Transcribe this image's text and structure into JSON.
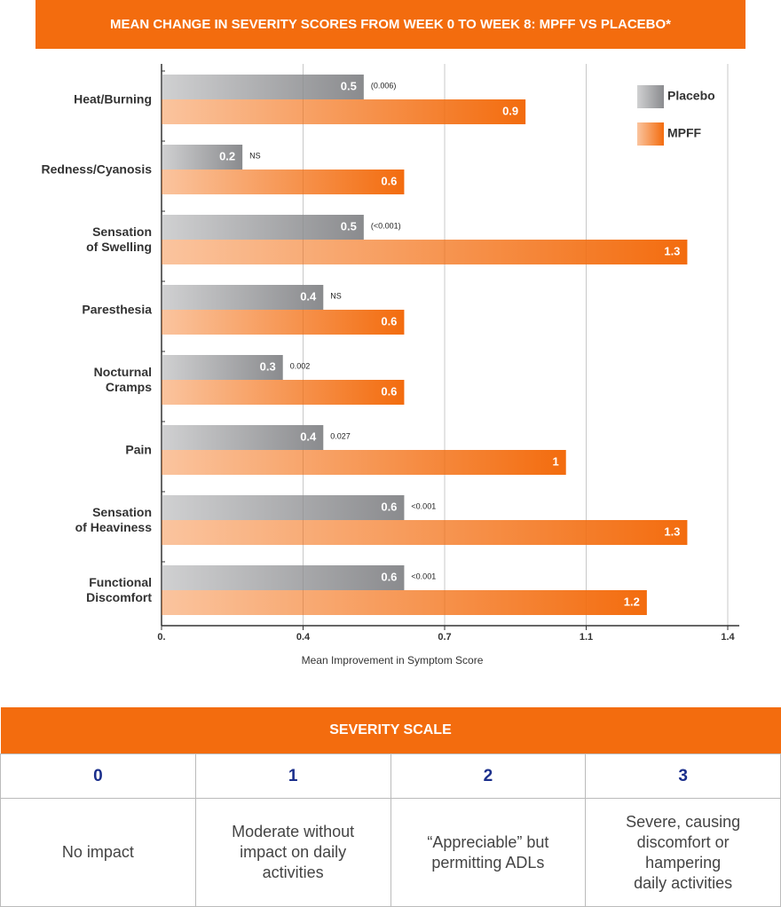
{
  "chart_data": {
    "type": "bar",
    "orientation": "horizontal",
    "title": "MEAN CHANGE IN SEVERITY SCORES FROM WEEK 0 TO WEEK 8: MPFF VS PLACEBO*",
    "xlabel": "Mean Improvement in Symptom Score",
    "categories": [
      "Heat/Burning",
      "Redness/Cyanosis",
      "Sensation\nof Swelling",
      "Paresthesia",
      "Nocturnal\nCramps",
      "Pain",
      "Sensation\nof Heaviness",
      "Functional\nDiscomfort"
    ],
    "series": [
      {
        "name": "Placebo",
        "color": "#8a8b8e",
        "values": [
          0.5,
          0.2,
          0.5,
          0.4,
          0.3,
          0.4,
          0.6,
          0.6
        ],
        "annotations": [
          "(0.006)",
          "NS",
          "(<0.001)",
          "NS",
          "0.002",
          "0.027",
          "<0.001",
          "<0.001"
        ]
      },
      {
        "name": "MPFF",
        "color": "#f36c0e",
        "values": [
          0.9,
          0.6,
          1.3,
          0.6,
          0.6,
          1,
          1.3,
          1.2
        ]
      }
    ],
    "xlim": [
      0,
      1.4
    ],
    "xticks": [
      {
        "value": 0,
        "label": "0."
      },
      {
        "value": 0.35,
        "label": "0.4"
      },
      0.7,
      {
        "value": 1.05,
        "label": "1.1"
      },
      1.4
    ],
    "grid": true,
    "legend": "upper right"
  },
  "table": {
    "title": "SEVERITY SCALE",
    "header": [
      "0",
      "1",
      "2",
      "3"
    ],
    "rows": [
      [
        "No impact",
        "Moderate without\nimpact on daily\nactivities",
        "“Appreciable” but\npermitting ADLs",
        "Severe, causing\ndiscomfort or\nhampering\ndaily activities"
      ]
    ]
  }
}
